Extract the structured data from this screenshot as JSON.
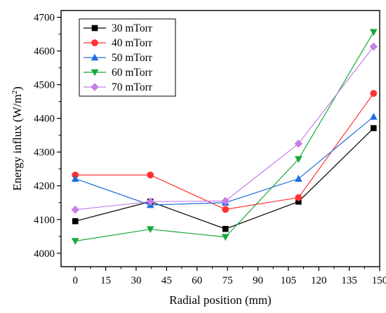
{
  "chart_data": {
    "type": "line",
    "xlabel": "Radial position (mm)",
    "ylabel_main": "Energy influx (W/m",
    "ylabel_sup": "2",
    "ylabel_close": ")",
    "xlim": [
      -7,
      150
    ],
    "ylim": [
      3960,
      4720
    ],
    "xticks": [
      0,
      15,
      30,
      45,
      60,
      75,
      90,
      105,
      120,
      135,
      150
    ],
    "yticks": [
      4000,
      4100,
      4200,
      4300,
      4400,
      4500,
      4600,
      4700
    ],
    "x": [
      0,
      37,
      74,
      110,
      147
    ],
    "legend_position": "top-left",
    "series": [
      {
        "name": "30 mTorr",
        "color": "#000000",
        "marker": "square",
        "values": [
          4095,
          4153,
          4072,
          4153,
          4371
        ]
      },
      {
        "name": "40 mTorr",
        "color": "#ff3333",
        "marker": "circle",
        "values": [
          4232,
          4232,
          4130,
          4165,
          4474
        ]
      },
      {
        "name": "50 mTorr",
        "color": "#1e6fe0",
        "marker": "triangle-up",
        "values": [
          4221,
          4143,
          4150,
          4221,
          4405
        ]
      },
      {
        "name": "60 mTorr",
        "color": "#18a83a",
        "marker": "triangle-down",
        "values": [
          4036,
          4071,
          4048,
          4279,
          4656
        ]
      },
      {
        "name": "70 mTorr",
        "color": "#c77fe8",
        "marker": "diamond",
        "values": [
          4129,
          4153,
          4155,
          4325,
          4613
        ]
      }
    ]
  }
}
